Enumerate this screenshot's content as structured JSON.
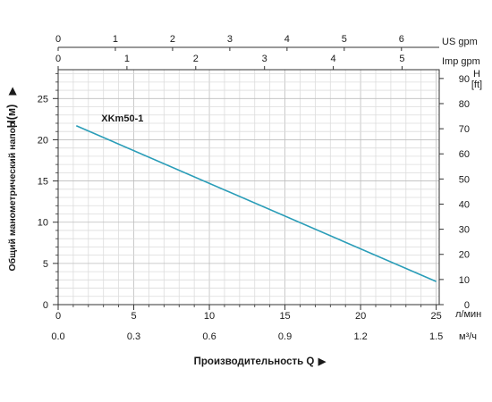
{
  "chart_data": {
    "type": "line",
    "series": [
      {
        "name": "XKm50-1",
        "x": [
          1.2,
          25.0
        ],
        "y": [
          21.7,
          2.8
        ],
        "color": "#2a9db8"
      }
    ],
    "x_axis": {
      "label": "Производительность Q",
      "range": [
        0,
        25.2
      ],
      "ticks": [
        0,
        5,
        10,
        15,
        20,
        25
      ],
      "unit": "л/мин"
    },
    "x_axis_m3h": {
      "range": [
        0,
        1.512
      ],
      "ticks": [
        "0.0",
        "0.3",
        "0.6",
        "0.9",
        "1.2",
        "1.5"
      ],
      "unit": "м³/ч"
    },
    "top_axis_us_gpm": {
      "range": [
        0,
        6.66
      ],
      "ticks": [
        0,
        1,
        2,
        3,
        4,
        5,
        6
      ],
      "unit": "US gpm"
    },
    "top_axis_imp_gpm": {
      "range": [
        0,
        5.54
      ],
      "ticks": [
        0,
        1,
        2,
        3,
        4,
        5
      ],
      "unit": "Imp gpm"
    },
    "y_axis": {
      "label": "Общий манометрический напор",
      "symbol": "H(м)",
      "range": [
        0,
        28.5
      ],
      "ticks": [
        0,
        5,
        10,
        15,
        20,
        25
      ]
    },
    "y_axis_ft": {
      "unit": "H",
      "unit_sub": "[ft]",
      "range": [
        0,
        93.5
      ],
      "ticks": [
        0,
        10,
        20,
        30,
        40,
        50,
        60,
        70,
        80,
        90
      ]
    },
    "grid": true
  }
}
